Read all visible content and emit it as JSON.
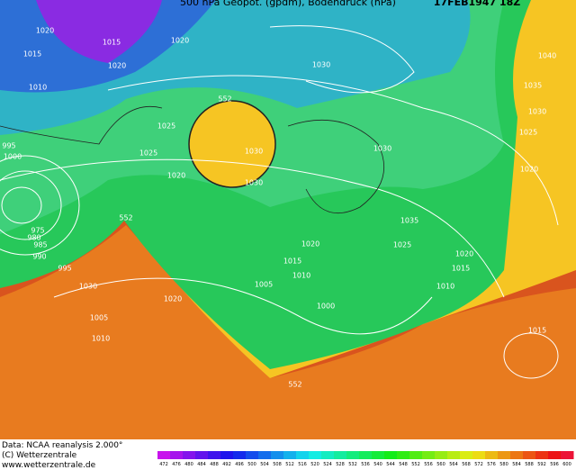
{
  "header": {
    "title": "500 hPa Geopot. (gpdm), Bodendruck (hPa)",
    "date": "17FEB1947 18Z"
  },
  "footer": {
    "source": "Data: NCAA reanalysis 2.000°",
    "copyright": "(C) Wetterzentrale",
    "url": "www.wetterzentrale.de"
  },
  "colorbar": {
    "labels": [
      472,
      476,
      480,
      484,
      488,
      492,
      496,
      500,
      504,
      508,
      512,
      516,
      520,
      524,
      528,
      532,
      536,
      540,
      544,
      548,
      552,
      556,
      560,
      564,
      568,
      572,
      576,
      580,
      584,
      588,
      592,
      596,
      600
    ]
  },
  "map": {
    "labels": [
      "1020",
      "1015",
      "1010",
      "1015",
      "1020",
      "1020",
      "552",
      "1030",
      "1030",
      "1025",
      "1025",
      "1020",
      "1030",
      "1040",
      "1035",
      "1030",
      "1025",
      "1020",
      "1030",
      "1035",
      "1025",
      "1020",
      "1015",
      "1010",
      "1020",
      "1015",
      "1010",
      "1005",
      "1000",
      "1020",
      "1005",
      "1010",
      "1030",
      "995",
      "990",
      "985",
      "980",
      "975",
      "1000",
      "995",
      "552",
      "552",
      "1015"
    ]
  }
}
